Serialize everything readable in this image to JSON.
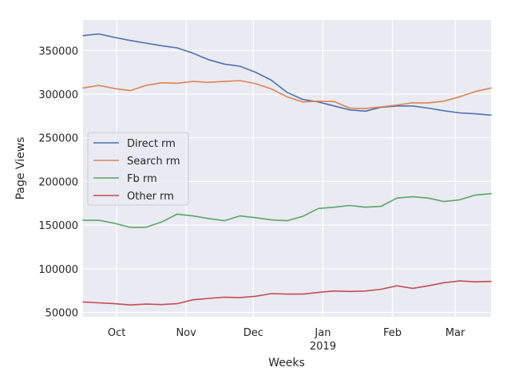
{
  "chart_data": {
    "type": "line",
    "xlabel": "Weeks",
    "ylabel": "Page Views",
    "x_ticks": [
      {
        "date": "2018-10-01",
        "label": "Oct",
        "sublabel": ""
      },
      {
        "date": "2018-11-01",
        "label": "Nov",
        "sublabel": ""
      },
      {
        "date": "2018-12-01",
        "label": "Dec",
        "sublabel": ""
      },
      {
        "date": "2019-01-01",
        "label": "Jan",
        "sublabel": "2019"
      },
      {
        "date": "2019-02-01",
        "label": "Feb",
        "sublabel": ""
      },
      {
        "date": "2019-03-01",
        "label": "Mar",
        "sublabel": ""
      }
    ],
    "y_ticks": [
      50000,
      100000,
      150000,
      200000,
      250000,
      300000,
      350000
    ],
    "xlim": [
      "2018-09-16",
      "2019-03-17"
    ],
    "ylim": [
      45000,
      385000
    ],
    "grid": true,
    "legend_position": "center-left",
    "x": [
      "2018-09-16",
      "2018-09-23",
      "2018-09-30",
      "2018-10-07",
      "2018-10-14",
      "2018-10-21",
      "2018-10-28",
      "2018-11-04",
      "2018-11-11",
      "2018-11-18",
      "2018-11-25",
      "2018-12-02",
      "2018-12-09",
      "2018-12-16",
      "2018-12-23",
      "2018-12-30",
      "2019-01-06",
      "2019-01-13",
      "2019-01-20",
      "2019-01-27",
      "2019-02-03",
      "2019-02-10",
      "2019-02-17",
      "2019-02-24",
      "2019-03-03",
      "2019-03-10",
      "2019-03-17"
    ],
    "series": [
      {
        "name": "Direct rm",
        "color": "#4c72b0",
        "values": [
          367000,
          369000,
          365000,
          361500,
          358500,
          355500,
          353000,
          347000,
          339500,
          334500,
          332000,
          325000,
          316000,
          302000,
          294000,
          291000,
          286500,
          282000,
          280500,
          285000,
          286500,
          286500,
          284000,
          281000,
          278500,
          277500,
          276000
        ]
      },
      {
        "name": "Search rm",
        "color": "#dd8452",
        "values": [
          307000,
          310000,
          306500,
          304000,
          310000,
          313000,
          312500,
          314500,
          313500,
          314500,
          315500,
          312000,
          306000,
          297000,
          291000,
          292000,
          291500,
          284000,
          283500,
          285500,
          287500,
          290000,
          290000,
          292000,
          297000,
          303000,
          307000
        ]
      },
      {
        "name": "Fb rm",
        "color": "#55a868",
        "values": [
          155500,
          155500,
          152000,
          147500,
          147500,
          153500,
          162500,
          160500,
          157500,
          155000,
          160500,
          158500,
          156000,
          155000,
          160000,
          169000,
          170500,
          172500,
          170500,
          171500,
          181000,
          182500,
          181000,
          177000,
          179000,
          184500,
          186000
        ]
      },
      {
        "name": "Other rm",
        "color": "#c44e52",
        "values": [
          62000,
          61000,
          60000,
          58500,
          59500,
          59000,
          60000,
          64500,
          66000,
          67500,
          67000,
          68500,
          71500,
          71000,
          71000,
          73000,
          74500,
          74000,
          74500,
          76500,
          80500,
          77500,
          80500,
          84000,
          86000,
          85000,
          85500
        ]
      }
    ]
  }
}
